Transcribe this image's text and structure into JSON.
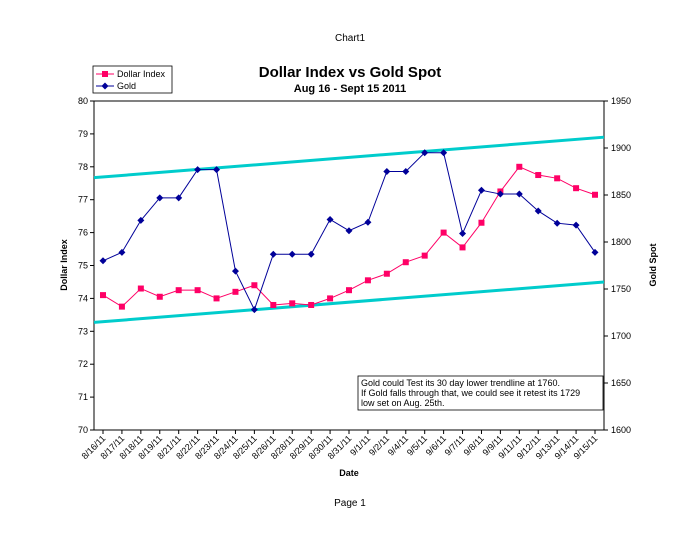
{
  "page": {
    "header": "Chart1",
    "footer": "Page 1"
  },
  "chart_data": {
    "type": "line",
    "title": "Dollar Index vs Gold Spot",
    "subtitle": "Aug 16 - Sept 15 2011",
    "xlabel": "Date",
    "ylabel": "Dollar Index",
    "y2label": "Gold Spot",
    "ylim": [
      70,
      80
    ],
    "y2lim": [
      1600,
      1950
    ],
    "yticks": [
      "70",
      "71",
      "72",
      "73",
      "74",
      "75",
      "76",
      "77",
      "78",
      "79",
      "80"
    ],
    "y2ticks": [
      "1600",
      "1650",
      "1700",
      "1750",
      "1800",
      "1850",
      "1900",
      "1950"
    ],
    "categories": [
      "8/16/11",
      "8/17/11",
      "8/18/11",
      "8/19/11",
      "8/21/11",
      "8/22/11",
      "8/23/11",
      "8/24/11",
      "8/25/11",
      "8/26/11",
      "8/28/11",
      "8/29/11",
      "8/30/11",
      "8/31/11",
      "9/1/11",
      "9/2/11",
      "9/4/11",
      "9/5/11",
      "9/6/11",
      "9/7/11",
      "9/8/11",
      "9/9/11",
      "9/11/11",
      "9/12/11",
      "9/13/11",
      "9/14/11",
      "9/15/11"
    ],
    "series": [
      {
        "name": "Dollar Index",
        "axis": "left",
        "color": "#ff0066",
        "marker": "square",
        "values": [
          74.1,
          73.75,
          74.3,
          74.05,
          74.25,
          74.25,
          74.0,
          74.2,
          74.4,
          73.8,
          73.85,
          73.8,
          74.0,
          74.25,
          74.55,
          74.75,
          75.1,
          75.3,
          76.0,
          75.55,
          76.3,
          77.25,
          78.0,
          77.75,
          77.65,
          77.35,
          77.15
        ]
      },
      {
        "name": "Gold",
        "axis": "right",
        "color": "#000099",
        "marker": "diamond",
        "values": [
          1780,
          1789,
          1823,
          1847,
          1847,
          1877,
          1877,
          1769,
          1728,
          1787,
          1787,
          1787,
          1824,
          1812,
          1821,
          1875,
          1875,
          1895,
          1895,
          1809,
          1855,
          1851,
          1851,
          1833,
          1820,
          1818,
          1789
        ]
      }
    ],
    "trendlines": [
      {
        "name": "upper trendline",
        "color": "#00cccc",
        "y_start": 77.67,
        "y_end": 78.9
      },
      {
        "name": "lower trendline",
        "color": "#00cccc",
        "y_start": 73.27,
        "y_end": 74.5
      }
    ],
    "legend_position": "top-left",
    "grid": false,
    "annotation": [
      "Gold could Test its 30 day lower trendline at 1760.",
      "If Gold falls through that, we could see it retest its 1729",
      "low set on Aug. 25th."
    ]
  }
}
